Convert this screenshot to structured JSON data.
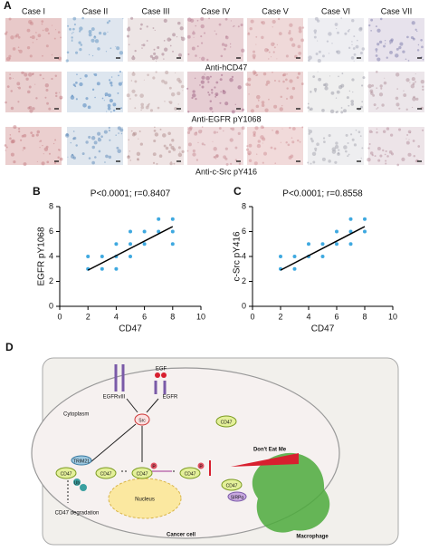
{
  "panel_a": {
    "label": "A",
    "columns": [
      "Case I",
      "Case II",
      "Case III",
      "Case IV",
      "Case V",
      "Case VI",
      "Case VII"
    ],
    "captions": [
      "Anti-hCD47",
      "Anti-EGFR pY1068",
      "Anti-c-Src pY416"
    ]
  },
  "chart_data": [
    {
      "type": "scatter",
      "label": "B",
      "title": "P<0.0001; r=0.8407",
      "x_label": "CD47",
      "y_label": "EGFR pY1068",
      "x": [
        2,
        2,
        3,
        3,
        4,
        4,
        4,
        5,
        5,
        5,
        6,
        6,
        7,
        7,
        8,
        8,
        8
      ],
      "y": [
        3,
        4,
        3,
        4,
        3,
        4,
        5,
        4,
        5,
        6,
        5,
        6,
        6,
        7,
        5,
        6,
        7
      ],
      "color": "#3fa9e0",
      "xlim": [
        0,
        10
      ],
      "xticks": [
        0,
        2,
        4,
        6,
        8,
        10
      ],
      "ylim": [
        0,
        8
      ],
      "yticks": [
        0,
        2,
        4,
        6,
        8
      ],
      "fit": {
        "x": [
          2,
          8
        ],
        "y": [
          2.9,
          6.4
        ],
        "color": "#000000"
      }
    },
    {
      "type": "scatter",
      "label": "C",
      "title": "P<0.0001; r=0.8558",
      "x_label": "CD47",
      "y_label": "c-Src pY416",
      "x": [
        2,
        2,
        3,
        3,
        4,
        4,
        5,
        5,
        6,
        6,
        7,
        7,
        7,
        8,
        8
      ],
      "y": [
        3,
        4,
        3,
        4,
        4,
        5,
        4,
        5,
        5,
        6,
        5,
        6,
        7,
        6,
        7
      ],
      "color": "#3fa9e0",
      "xlim": [
        0,
        10
      ],
      "xticks": [
        0,
        2,
        4,
        6,
        8,
        10
      ],
      "ylim": [
        0,
        8
      ],
      "yticks": [
        0,
        2,
        4,
        6,
        8
      ],
      "fit": {
        "x": [
          2,
          8
        ],
        "y": [
          2.9,
          6.4
        ],
        "color": "#000000"
      }
    }
  ],
  "panel_d": {
    "label": "D",
    "egfrviii": "EGFRvIII",
    "egf": "EGF",
    "egfr": "EGFR",
    "src": "Src",
    "cytoplasm": "Cytoplasm",
    "trim21": "TRIM21",
    "cd47": "CD47",
    "p": "P",
    "ub": "Ub",
    "degradation": "CD47 degradation",
    "nucleus": "Nucleus",
    "dont_eat_me": "Don't Eat Me",
    "sirpa": "SIRPα",
    "cancer_cell": "Cancer cell",
    "macrophage": "Macrophage"
  }
}
